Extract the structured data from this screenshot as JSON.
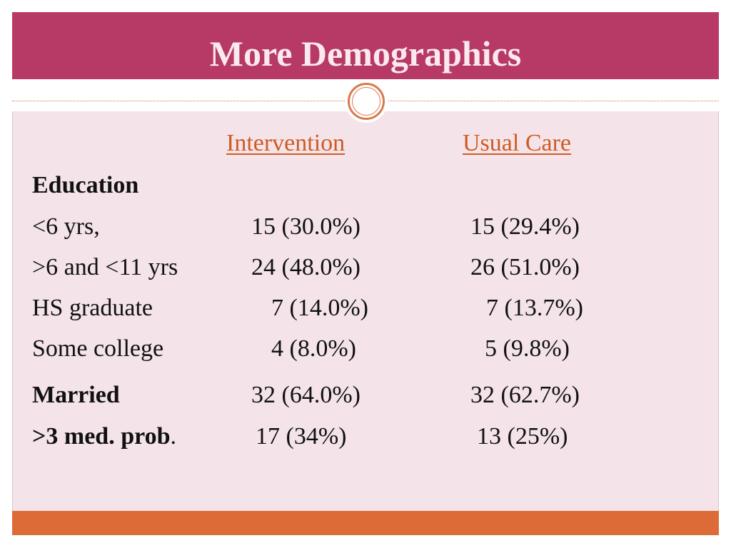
{
  "slide": {
    "title": "More Demographics",
    "columns": {
      "intervention": "Intervention",
      "usual_care": "Usual Care"
    },
    "section_education": "Education",
    "rows": [
      {
        "label": "<6 yrs,",
        "intervention": "15 (30.0%)",
        "usual_care": "15 (29.4%)"
      },
      {
        "label": ">6 and <11 yrs",
        "intervention": "24 (48.0%)",
        "usual_care": "26 (51.0%)"
      },
      {
        "label": "HS graduate",
        "intervention": "7 (14.0%)",
        "usual_care": "7 (13.7%)"
      },
      {
        "label": "Some college",
        "intervention": "4 (8.0%)",
        "usual_care": "5 (9.8%)"
      },
      {
        "label": "Married",
        "intervention": "32 (64.0%)",
        "usual_care": "32 (62.7%)"
      },
      {
        "label": ">3 med. prob",
        "label_suffix": ".",
        "intervention": "17 (34%)",
        "usual_care": "13 (25%)"
      }
    ]
  },
  "colors": {
    "title_bar": "#b73a66",
    "background": "#f4e4ea",
    "accent_orange": "#dd6b38",
    "header_text": "#cf5b22"
  }
}
